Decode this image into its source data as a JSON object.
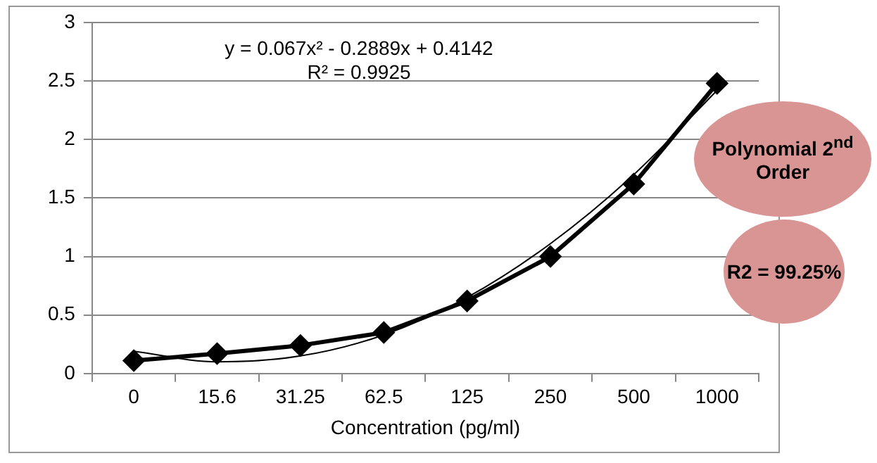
{
  "chart_data": {
    "type": "line",
    "xlabel": "Concentration (pg/ml)",
    "categories": [
      "0",
      "15.6",
      "31.25",
      "62.5",
      "125",
      "250",
      "500",
      "1000"
    ],
    "series": [
      {
        "color": "#000000",
        "values": [
          0.11,
          0.17,
          0.24,
          0.35,
          0.62,
          1.0,
          1.62,
          2.48
        ],
        "marker": "diamond"
      },
      {
        "type": "line",
        "color": "#000000",
        "values": [
          0.19,
          0.1,
          0.15,
          0.33,
          0.65,
          1.11,
          1.7,
          2.42
        ],
        "marker": "none"
      }
    ],
    "ylim": [
      0,
      3
    ],
    "yticks": [
      0,
      0.5,
      1,
      1.5,
      2,
      2.5,
      3
    ],
    "grid": "y",
    "legend": false,
    "annotations": [
      "y = 0.067x² - 0.2889x + 0.4142",
      "R² = 0.9925",
      "Polynomial 2$^{nd}$ Order",
      "R2 = 99.25%"
    ]
  }
}
